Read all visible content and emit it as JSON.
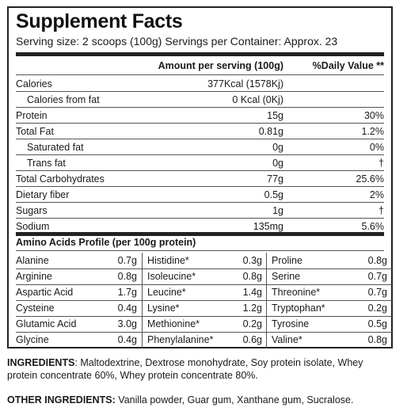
{
  "title": "Supplement Facts",
  "serving_line": "Serving size: 2 scoops (100g) Servings per Container: Approx. 23",
  "header": {
    "amount": "Amount per serving (100g)",
    "dv": "%Daily Value **"
  },
  "nutrients": [
    {
      "label": "Calories",
      "amount": "377Kcal (1578Kj)",
      "dv": ""
    },
    {
      "label": "Calories from fat",
      "amount": "0 Kcal (0Kj)",
      "dv": ""
    },
    {
      "label": "Protein",
      "amount": "15g",
      "dv": "30%"
    },
    {
      "label": "Total Fat",
      "amount": "0.81g",
      "dv": "1.2%"
    },
    {
      "label": "Saturated fat",
      "amount": "0g",
      "dv": "0%"
    },
    {
      "label": "Trans fat",
      "amount": "0g",
      "dv": "†"
    },
    {
      "label": "Total Carbohydrates",
      "amount": "77g",
      "dv": "25.6%"
    },
    {
      "label": "Dietary fiber",
      "amount": "0.5g",
      "dv": "2%"
    },
    {
      "label": "Sugars",
      "amount": "1g",
      "dv": "†"
    },
    {
      "label": "Sodium",
      "amount": "135mg",
      "dv": "5.6%"
    }
  ],
  "amino_title": "Amino Acids Profile (per 100g protein)",
  "amino": [
    [
      {
        "name": "Alanine",
        "value": "0.7g"
      },
      {
        "name": "Arginine",
        "value": "0.8g"
      },
      {
        "name": "Aspartic Acid",
        "value": "1.7g"
      },
      {
        "name": "Cysteine",
        "value": "0.4g"
      },
      {
        "name": "Glutamic Acid",
        "value": "3.0g"
      },
      {
        "name": "Glycine",
        "value": "0.4g"
      }
    ],
    [
      {
        "name": "Histidine*",
        "value": "0.3g"
      },
      {
        "name": "Isoleucine*",
        "value": "0.8g"
      },
      {
        "name": "Leucine*",
        "value": "1.4g"
      },
      {
        "name": "Lysine*",
        "value": "1.2g"
      },
      {
        "name": "Methionine*",
        "value": "0.2g"
      },
      {
        "name": "Phenylalanine*",
        "value": "0.6g"
      }
    ],
    [
      {
        "name": "Proline",
        "value": "0.8g"
      },
      {
        "name": "Serine",
        "value": "0.7g"
      },
      {
        "name": "Threonine*",
        "value": "0.7g"
      },
      {
        "name": "Tryptophan*",
        "value": "0.2g"
      },
      {
        "name": "Tyrosine",
        "value": "0.5g"
      },
      {
        "name": "Valine*",
        "value": "0.8g"
      }
    ]
  ],
  "ingredients_label": "INGREDIENTS",
  "ingredients_text": ": Maltodextrine, Dextrose monohydrate, Soy protein isolate, Whey protein concentrate 60%, Whey protein concentrate 80%.",
  "other_label": "OTHER INGREDIENTS:",
  "other_text": " Vanilla powder, Guar gum, Xanthane gum, Sucralose."
}
